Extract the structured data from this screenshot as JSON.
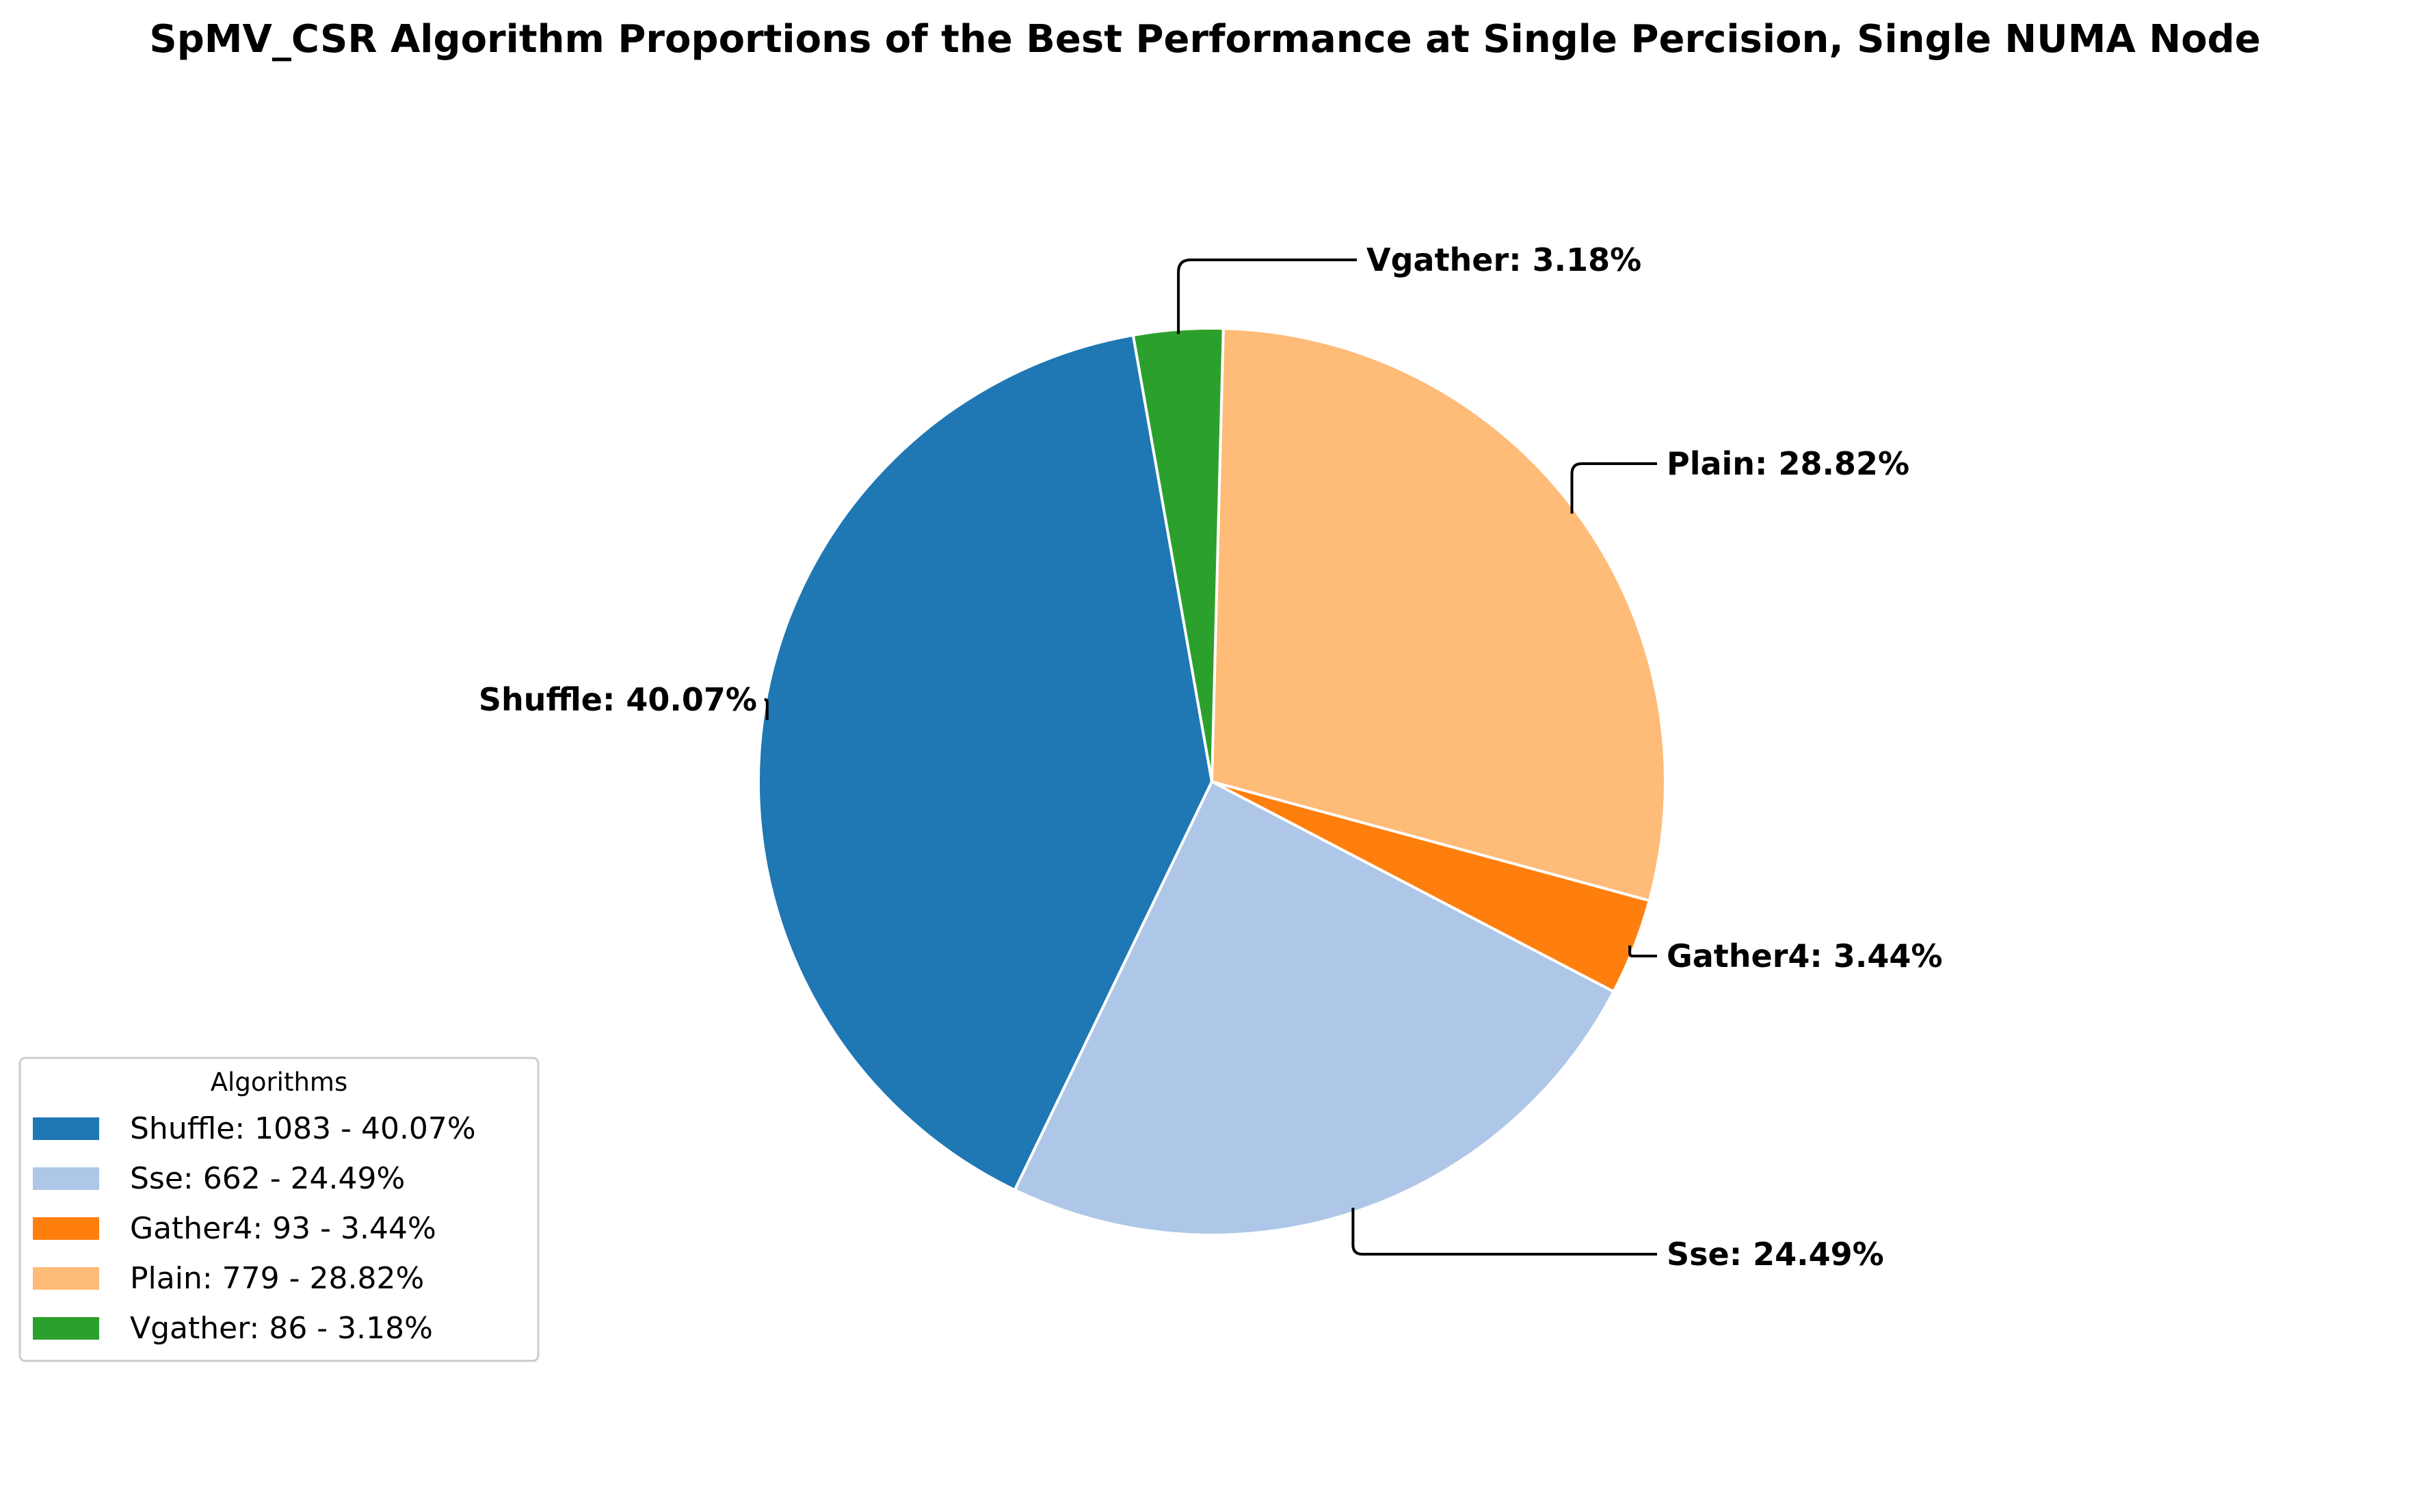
{
  "chart_data": {
    "type": "pie",
    "title": "SpMV_CSR Algorithm Proportions of the Best Performance at Single Percision, Single NUMA Node",
    "legend": {
      "title": "Algorithms",
      "placement": "lower-left"
    },
    "start_angle_deg": 100,
    "direction": "counterclockwise",
    "slices": [
      {
        "name": "Shuffle",
        "value": 1083,
        "percent": 40.07,
        "color": "#1f77b4",
        "callout": "Shuffle: 40.07%",
        "legend_label": "Shuffle: 1083 - 40.07%"
      },
      {
        "name": "Sse",
        "value": 662,
        "percent": 24.49,
        "color": "#aec7e8",
        "callout": "Sse: 24.49%",
        "legend_label": "Sse: 662 - 24.49%"
      },
      {
        "name": "Gather4",
        "value": 93,
        "percent": 3.44,
        "color": "#ff7f0e",
        "callout": "Gather4: 3.44%",
        "legend_label": "Gather4: 93 - 3.44%"
      },
      {
        "name": "Plain",
        "value": 779,
        "percent": 28.82,
        "color": "#ffbb78",
        "callout": "Plain: 28.82%",
        "legend_label": "Plain: 779 - 28.82%"
      },
      {
        "name": "Vgather",
        "value": 86,
        "percent": 3.18,
        "color": "#2ca02c",
        "callout": "Vgather: 3.18%",
        "legend_label": "Vgather: 86 - 3.18%"
      }
    ]
  }
}
